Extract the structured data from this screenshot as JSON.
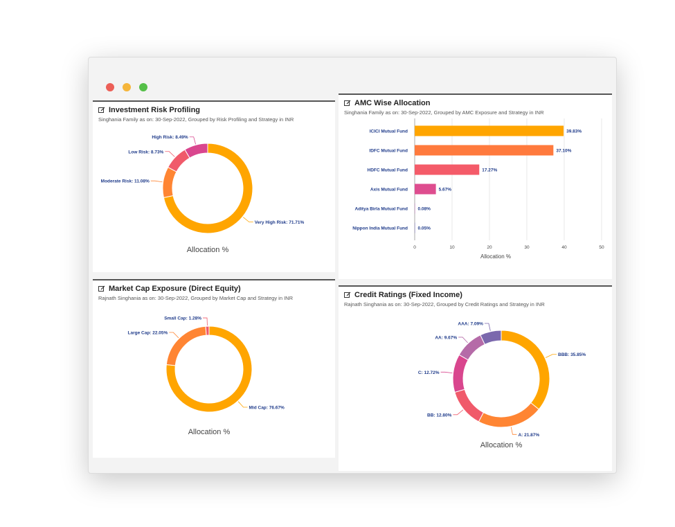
{
  "window": {
    "controls": {
      "close_color": "#ec5f57",
      "minimize_color": "#f5b53a",
      "maximize_color": "#55bf48"
    }
  },
  "panels": {
    "risk": {
      "title": "Investment Risk Profiling",
      "subtitle": "Singhania Family as on: 30-Sep-2022, Grouped by Risk Profiling and Strategy in INR",
      "axis_label": "Allocation %",
      "edit_icon": "edit-icon"
    },
    "amc": {
      "title": "AMC Wise Allocation",
      "subtitle": "Singhania Family as on: 30-Sep-2022, Grouped by AMC Exposure and Strategy in INR",
      "xlabel": "Allocation %",
      "edit_icon": "edit-icon"
    },
    "mcap": {
      "title": "Market Cap Exposure (Direct Equity)",
      "subtitle": "Rajnath Singhania as on: 30-Sep-2022, Grouped by Market Cap and Strategy in INR",
      "axis_label": "Allocation %",
      "edit_icon": "edit-icon"
    },
    "credit": {
      "title": "Credit Ratings (Fixed Income)",
      "subtitle": "Rajnath Singhania as on: 30-Sep-2022, Grouped by Credit Ratings and Strategy in INR",
      "axis_label": "Allocation %",
      "edit_icon": "edit-icon"
    }
  },
  "chart_data": [
    {
      "type": "pie",
      "id": "risk",
      "title": "Investment Risk Profiling",
      "xlabel": "Allocation %",
      "slices": [
        {
          "label": "Very High Risk: 71.71%",
          "name": "Very High Risk",
          "value": 71.71,
          "color": "#ffa500"
        },
        {
          "label": "Moderate Risk: 11.08%",
          "name": "Moderate Risk",
          "value": 11.08,
          "color": "#ff8533"
        },
        {
          "label": "Low Risk: 8.73%",
          "name": "Low Risk",
          "value": 8.73,
          "color": "#f05a6a"
        },
        {
          "label": "High Risk: 8.49%",
          "name": "High Risk",
          "value": 8.49,
          "color": "#d9468e"
        }
      ]
    },
    {
      "type": "bar",
      "id": "amc",
      "title": "AMC Wise Allocation",
      "xlabel": "Allocation %",
      "xlim": [
        0,
        50
      ],
      "ticks": [
        0,
        10,
        20,
        30,
        40,
        50
      ],
      "categories": [
        "ICICI Mutual Fund",
        "IDFC Mutual Fund",
        "HDFC Mutual Fund",
        "Axis Mutual Fund",
        "Aditya Birla Mutual Fund",
        "Nippon India Mutual Fund"
      ],
      "values": [
        39.83,
        37.1,
        17.27,
        5.67,
        0.08,
        0.05
      ],
      "value_labels": [
        "39.83%",
        "37.10%",
        "17.27%",
        "5.67%",
        "0.08%",
        "0.05%"
      ],
      "colors": [
        "#ffa500",
        "#ff7a3d",
        "#f45b69",
        "#de4d8f",
        "#b66fb0",
        "#7a6fb5"
      ]
    },
    {
      "type": "pie",
      "id": "mcap",
      "title": "Market Cap Exposure (Direct Equity)",
      "xlabel": "Allocation %",
      "slices": [
        {
          "label": "Mid Cap: 76.67%",
          "name": "Mid Cap",
          "value": 76.67,
          "color": "#ffa500"
        },
        {
          "label": "Large Cap: 22.05%",
          "name": "Large Cap",
          "value": 22.05,
          "color": "#ff8533"
        },
        {
          "label": "Small Cap: 1.28%",
          "name": "Small Cap",
          "value": 1.28,
          "color": "#f05a6a"
        }
      ]
    },
    {
      "type": "pie",
      "id": "credit",
      "title": "Credit Ratings (Fixed Income)",
      "xlabel": "Allocation %",
      "slices": [
        {
          "label": "BBB: 35.85%",
          "name": "BBB",
          "value": 35.85,
          "color": "#ffa500"
        },
        {
          "label": "A: 21.87%",
          "name": "A",
          "value": 21.87,
          "color": "#ff8533"
        },
        {
          "label": "BB: 12.80%",
          "name": "BB",
          "value": 12.8,
          "color": "#f05a6a"
        },
        {
          "label": "C: 12.72%",
          "name": "C",
          "value": 12.72,
          "color": "#d9468e"
        },
        {
          "label": "AA: 9.67%",
          "name": "AA",
          "value": 9.67,
          "color": "#b56ba8"
        },
        {
          "label": "AAA: 7.09%",
          "name": "AAA",
          "value": 7.09,
          "color": "#7b68ad"
        }
      ]
    }
  ]
}
